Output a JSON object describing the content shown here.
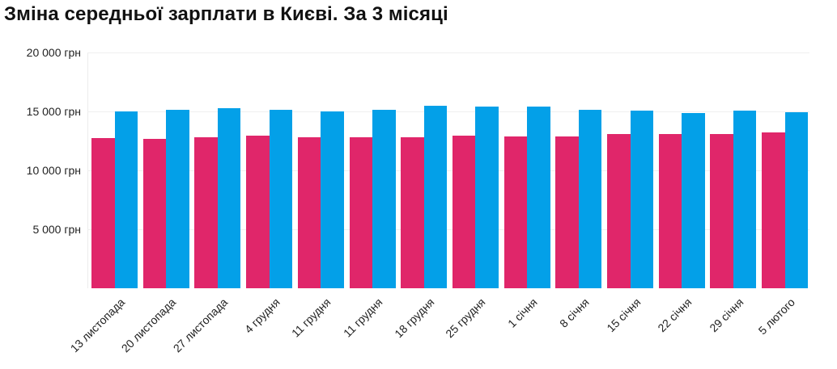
{
  "title": "Зміна середньої зарплати в Києві. За 3 місяці",
  "colors": {
    "series_a": "#E0266A",
    "series_b": "#03A0E8",
    "grid": "#efefef"
  },
  "y_axis": {
    "ticks": [
      {
        "value": 20000,
        "label": "20 000 грн"
      },
      {
        "value": 15000,
        "label": "15 000 грн"
      },
      {
        "value": 10000,
        "label": "10 000 грн"
      },
      {
        "value": 5000,
        "label": "5 000 грн"
      }
    ]
  },
  "chart_data": {
    "type": "bar",
    "title": "Зміна середньої зарплати в Києві. За 3 місяці",
    "xlabel": "",
    "ylabel": "",
    "ylim": [
      0,
      20000
    ],
    "grid": true,
    "legend": null,
    "categories": [
      "13 листопада",
      "20 листопада",
      "27 листопада",
      "4 грудня",
      "11 грудня",
      "11 грудня",
      "18 грудня",
      "25 грудня",
      "1 січня",
      "8 січня",
      "15 січня",
      "22 січня",
      "29 січня",
      "5 лютого"
    ],
    "series": [
      {
        "name": "series 1 (pink)",
        "color": "#E0266A",
        "values": [
          12750,
          12650,
          12800,
          12950,
          12800,
          12800,
          12800,
          12950,
          12900,
          12900,
          13050,
          13050,
          13100,
          13250
        ]
      },
      {
        "name": "series 2 (blue)",
        "color": "#03A0E8",
        "values": [
          15000,
          15150,
          15250,
          15150,
          15000,
          15150,
          15450,
          15400,
          15400,
          15150,
          15050,
          14850,
          15050,
          14950
        ]
      }
    ]
  }
}
